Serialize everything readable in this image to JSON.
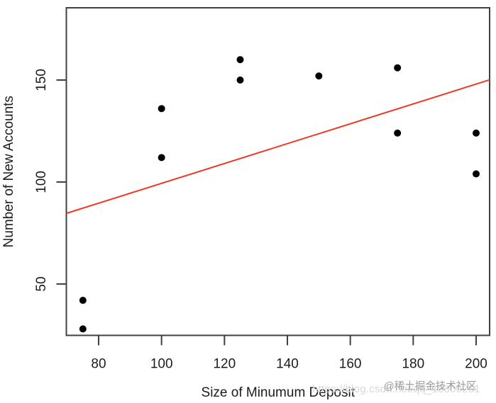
{
  "figure": {
    "watermark_url": "https://blog.csdn.net/qq_18000251",
    "watermark_community": "@稀土掘金技术社区"
  },
  "chart_data": {
    "type": "scatter",
    "title": "",
    "xlabel": "Size of Minumum Deposit",
    "ylabel": "Number of New Accounts",
    "points": [
      {
        "x": 75,
        "y": 42
      },
      {
        "x": 75,
        "y": 28
      },
      {
        "x": 100,
        "y": 136
      },
      {
        "x": 100,
        "y": 112
      },
      {
        "x": 125,
        "y": 160
      },
      {
        "x": 125,
        "y": 150
      },
      {
        "x": 150,
        "y": 152
      },
      {
        "x": 175,
        "y": 156
      },
      {
        "x": 175,
        "y": 124
      },
      {
        "x": 200,
        "y": 124
      },
      {
        "x": 200,
        "y": 104
      }
    ],
    "x_ticks": [
      80,
      100,
      120,
      140,
      160,
      180,
      200
    ],
    "y_ticks": [
      50,
      100,
      150
    ],
    "xlim": [
      69.7,
      204.3
    ],
    "ylim": [
      24.8,
      185.4
    ],
    "regression_line": {
      "intercept": 50.7,
      "slope": 0.4866
    },
    "grid": false,
    "legend": null,
    "colors": {
      "point": "#000000",
      "line": "#ee3a24",
      "frame": "#404040",
      "text": "#1c1c1c"
    }
  }
}
